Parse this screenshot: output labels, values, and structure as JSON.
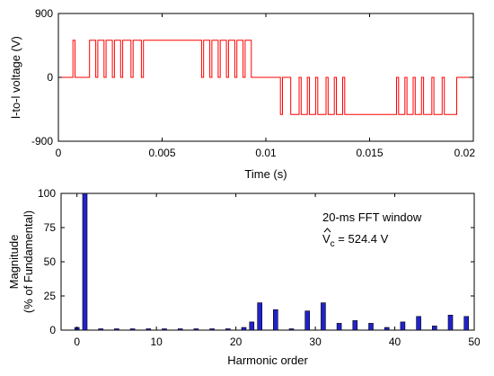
{
  "chart_data": [
    {
      "type": "line",
      "xlabel": "Time (s)",
      "ylabel": "l-to-l voltage (V)",
      "xlim": [
        0,
        0.02
      ],
      "ylim": [
        -900,
        900
      ],
      "xticks": [
        "0",
        "0.005",
        "0.01",
        "0.015",
        "0.02"
      ],
      "xtick_values": [
        0,
        0.005,
        0.01,
        0.015,
        0.02
      ],
      "yticks": [
        "900",
        "0",
        "-900"
      ],
      "ytick_values": [
        900,
        0,
        -900
      ],
      "grid": false,
      "color": "#ff0000",
      "description_levels": [
        -524,
        0,
        524
      ],
      "segments": [
        [
          0.0,
          0
        ],
        [
          0.0007,
          0
        ],
        [
          0.0007,
          524
        ],
        [
          0.0008,
          524
        ],
        [
          0.0008,
          0
        ],
        [
          0.0015,
          0
        ],
        [
          0.0015,
          524
        ],
        [
          0.0018,
          524
        ],
        [
          0.0018,
          0
        ],
        [
          0.0019,
          0
        ],
        [
          0.0019,
          524
        ],
        [
          0.0022,
          524
        ],
        [
          0.0022,
          0
        ],
        [
          0.0023,
          0
        ],
        [
          0.0023,
          524
        ],
        [
          0.0026,
          524
        ],
        [
          0.0026,
          0
        ],
        [
          0.0027,
          0
        ],
        [
          0.0027,
          524
        ],
        [
          0.003,
          524
        ],
        [
          0.003,
          0
        ],
        [
          0.0031,
          0
        ],
        [
          0.0031,
          524
        ],
        [
          0.0035,
          524
        ],
        [
          0.0035,
          0
        ],
        [
          0.0036,
          0
        ],
        [
          0.0036,
          524
        ],
        [
          0.004,
          524
        ],
        [
          0.004,
          0
        ],
        [
          0.0041,
          0
        ],
        [
          0.0041,
          524
        ],
        [
          0.0069,
          524
        ],
        [
          0.0069,
          0
        ],
        [
          0.007,
          0
        ],
        [
          0.007,
          524
        ],
        [
          0.0073,
          524
        ],
        [
          0.0073,
          0
        ],
        [
          0.0074,
          0
        ],
        [
          0.0074,
          524
        ],
        [
          0.0077,
          524
        ],
        [
          0.0077,
          0
        ],
        [
          0.0078,
          0
        ],
        [
          0.0078,
          524
        ],
        [
          0.0081,
          524
        ],
        [
          0.0081,
          0
        ],
        [
          0.0082,
          0
        ],
        [
          0.0082,
          524
        ],
        [
          0.0085,
          524
        ],
        [
          0.0085,
          0
        ],
        [
          0.0086,
          0
        ],
        [
          0.0086,
          524
        ],
        [
          0.0089,
          524
        ],
        [
          0.0089,
          0
        ],
        [
          0.009,
          0
        ],
        [
          0.009,
          524
        ],
        [
          0.0093,
          524
        ],
        [
          0.0093,
          0
        ],
        [
          0.0107,
          0
        ],
        [
          0.0107,
          -524
        ],
        [
          0.0108,
          -524
        ],
        [
          0.0108,
          0
        ],
        [
          0.0112,
          0
        ],
        [
          0.0112,
          -524
        ],
        [
          0.0116,
          -524
        ],
        [
          0.0116,
          0
        ],
        [
          0.0117,
          0
        ],
        [
          0.0117,
          -524
        ],
        [
          0.012,
          -524
        ],
        [
          0.012,
          0
        ],
        [
          0.0121,
          0
        ],
        [
          0.0121,
          -524
        ],
        [
          0.0124,
          -524
        ],
        [
          0.0124,
          0
        ],
        [
          0.0125,
          0
        ],
        [
          0.0125,
          -524
        ],
        [
          0.0129,
          -524
        ],
        [
          0.0129,
          0
        ],
        [
          0.013,
          0
        ],
        [
          0.013,
          -524
        ],
        [
          0.0133,
          -524
        ],
        [
          0.0133,
          0
        ],
        [
          0.0134,
          0
        ],
        [
          0.0134,
          -524
        ],
        [
          0.0137,
          -524
        ],
        [
          0.0137,
          0
        ],
        [
          0.0138,
          0
        ],
        [
          0.0138,
          -524
        ],
        [
          0.0163,
          -524
        ],
        [
          0.0163,
          0
        ],
        [
          0.0164,
          0
        ],
        [
          0.0164,
          -524
        ],
        [
          0.0167,
          -524
        ],
        [
          0.0167,
          0
        ],
        [
          0.0168,
          0
        ],
        [
          0.0168,
          -524
        ],
        [
          0.0171,
          -524
        ],
        [
          0.0171,
          0
        ],
        [
          0.0172,
          0
        ],
        [
          0.0172,
          -524
        ],
        [
          0.0175,
          -524
        ],
        [
          0.0175,
          0
        ],
        [
          0.0176,
          0
        ],
        [
          0.0176,
          -524
        ],
        [
          0.018,
          -524
        ],
        [
          0.018,
          0
        ],
        [
          0.0181,
          0
        ],
        [
          0.0181,
          -524
        ],
        [
          0.0185,
          -524
        ],
        [
          0.0185,
          0
        ],
        [
          0.0186,
          0
        ],
        [
          0.0186,
          -524
        ],
        [
          0.0192,
          -524
        ],
        [
          0.0192,
          0
        ],
        [
          0.02,
          0
        ]
      ]
    },
    {
      "type": "bar",
      "xlabel": "Harmonic order",
      "ylabel_lines": [
        "Magnitude",
        "(% of Fundamental)"
      ],
      "xlim": [
        -2,
        50
      ],
      "ylim": [
        0,
        100
      ],
      "xticks": [
        "0",
        "10",
        "20",
        "30",
        "40",
        "50"
      ],
      "xtick_values": [
        0,
        10,
        20,
        30,
        40,
        50
      ],
      "yticks": [
        "100",
        "75",
        "50",
        "25",
        "0"
      ],
      "ytick_values": [
        100,
        75,
        50,
        25,
        0
      ],
      "grid": false,
      "color": "#2222cc",
      "annotation": {
        "line1": "20-ms FFT window",
        "line2_base": "V",
        "line2_sub": "c",
        "line2_value": " = 524.4 V"
      },
      "harmonics": [
        0,
        1,
        3,
        5,
        7,
        9,
        11,
        13,
        15,
        17,
        19,
        21,
        22,
        23,
        25,
        27,
        29,
        31,
        33,
        35,
        37,
        39,
        41,
        43,
        45,
        47,
        49
      ],
      "values": [
        2,
        100,
        1,
        1,
        1,
        1,
        1,
        1,
        1,
        1,
        1,
        2,
        6,
        20,
        15,
        1,
        14,
        20,
        5,
        7,
        5,
        2,
        6,
        10,
        3,
        11,
        10
      ]
    }
  ]
}
